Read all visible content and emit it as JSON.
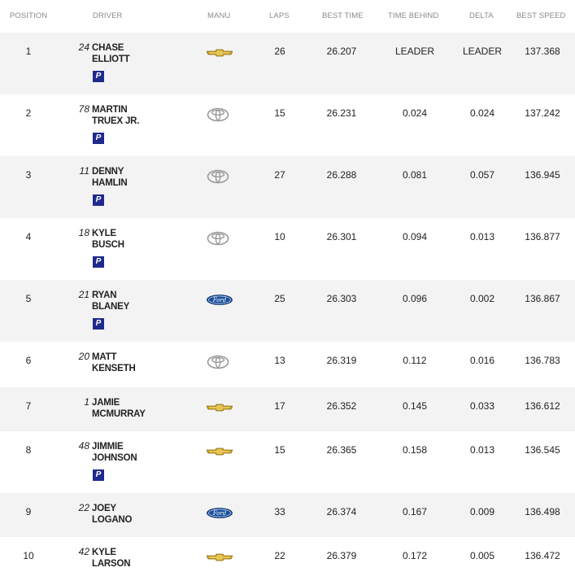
{
  "headers": {
    "position": "POSITION",
    "driver": "DRIVER",
    "manu": "MANU",
    "laps": "LAPS",
    "best_time": "BEST TIME",
    "time_behind": "TIME BEHIND",
    "delta": "DELTA",
    "best_speed": "BEST SPEED"
  },
  "badge_label": "P",
  "colors": {
    "badge": "#1f2a8c",
    "row_shade": "#f3f3f3",
    "chevy_gold": "#c9a227",
    "ford_blue": "#1a4f9c"
  },
  "rows": [
    {
      "position": "1",
      "number": "24",
      "first": "CHASE",
      "last": "ELLIOTT",
      "manu": "chevrolet-logo-icon",
      "laps": "26",
      "best_time": "26.207",
      "time_behind": "LEADER",
      "delta": "LEADER",
      "best_speed": "137.368",
      "badge": true
    },
    {
      "position": "2",
      "number": "78",
      "first": "MARTIN",
      "last": "TRUEX JR.",
      "manu": "toyota-logo-icon",
      "laps": "15",
      "best_time": "26.231",
      "time_behind": "0.024",
      "delta": "0.024",
      "best_speed": "137.242",
      "badge": true
    },
    {
      "position": "3",
      "number": "11",
      "first": "DENNY",
      "last": "HAMLIN",
      "manu": "toyota-logo-icon",
      "laps": "27",
      "best_time": "26.288",
      "time_behind": "0.081",
      "delta": "0.057",
      "best_speed": "136.945",
      "badge": true
    },
    {
      "position": "4",
      "number": "18",
      "first": "KYLE",
      "last": "BUSCH",
      "manu": "toyota-logo-icon",
      "laps": "10",
      "best_time": "26.301",
      "time_behind": "0.094",
      "delta": "0.013",
      "best_speed": "136.877",
      "badge": true
    },
    {
      "position": "5",
      "number": "21",
      "first": "RYAN",
      "last": "BLANEY",
      "manu": "ford-logo-icon",
      "laps": "25",
      "best_time": "26.303",
      "time_behind": "0.096",
      "delta": "0.002",
      "best_speed": "136.867",
      "badge": true
    },
    {
      "position": "6",
      "number": "20",
      "first": "MATT",
      "last": "KENSETH",
      "manu": "toyota-logo-icon",
      "laps": "13",
      "best_time": "26.319",
      "time_behind": "0.112",
      "delta": "0.016",
      "best_speed": "136.783",
      "badge": false
    },
    {
      "position": "7",
      "number": "1",
      "first": "JAMIE",
      "last": "MCMURRAY",
      "manu": "chevrolet-logo-icon",
      "laps": "17",
      "best_time": "26.352",
      "time_behind": "0.145",
      "delta": "0.033",
      "best_speed": "136.612",
      "badge": false
    },
    {
      "position": "8",
      "number": "48",
      "first": "JIMMIE",
      "last": "JOHNSON",
      "manu": "chevrolet-logo-icon",
      "laps": "15",
      "best_time": "26.365",
      "time_behind": "0.158",
      "delta": "0.013",
      "best_speed": "136.545",
      "badge": true
    },
    {
      "position": "9",
      "number": "22",
      "first": "JOEY",
      "last": "LOGANO",
      "manu": "ford-logo-icon",
      "laps": "33",
      "best_time": "26.374",
      "time_behind": "0.167",
      "delta": "0.009",
      "best_speed": "136.498",
      "badge": false
    },
    {
      "position": "10",
      "number": "42",
      "first": "KYLE",
      "last": "LARSON",
      "manu": "chevrolet-logo-icon",
      "laps": "22",
      "best_time": "26.379",
      "time_behind": "0.172",
      "delta": "0.005",
      "best_speed": "136.472",
      "badge": false
    }
  ]
}
